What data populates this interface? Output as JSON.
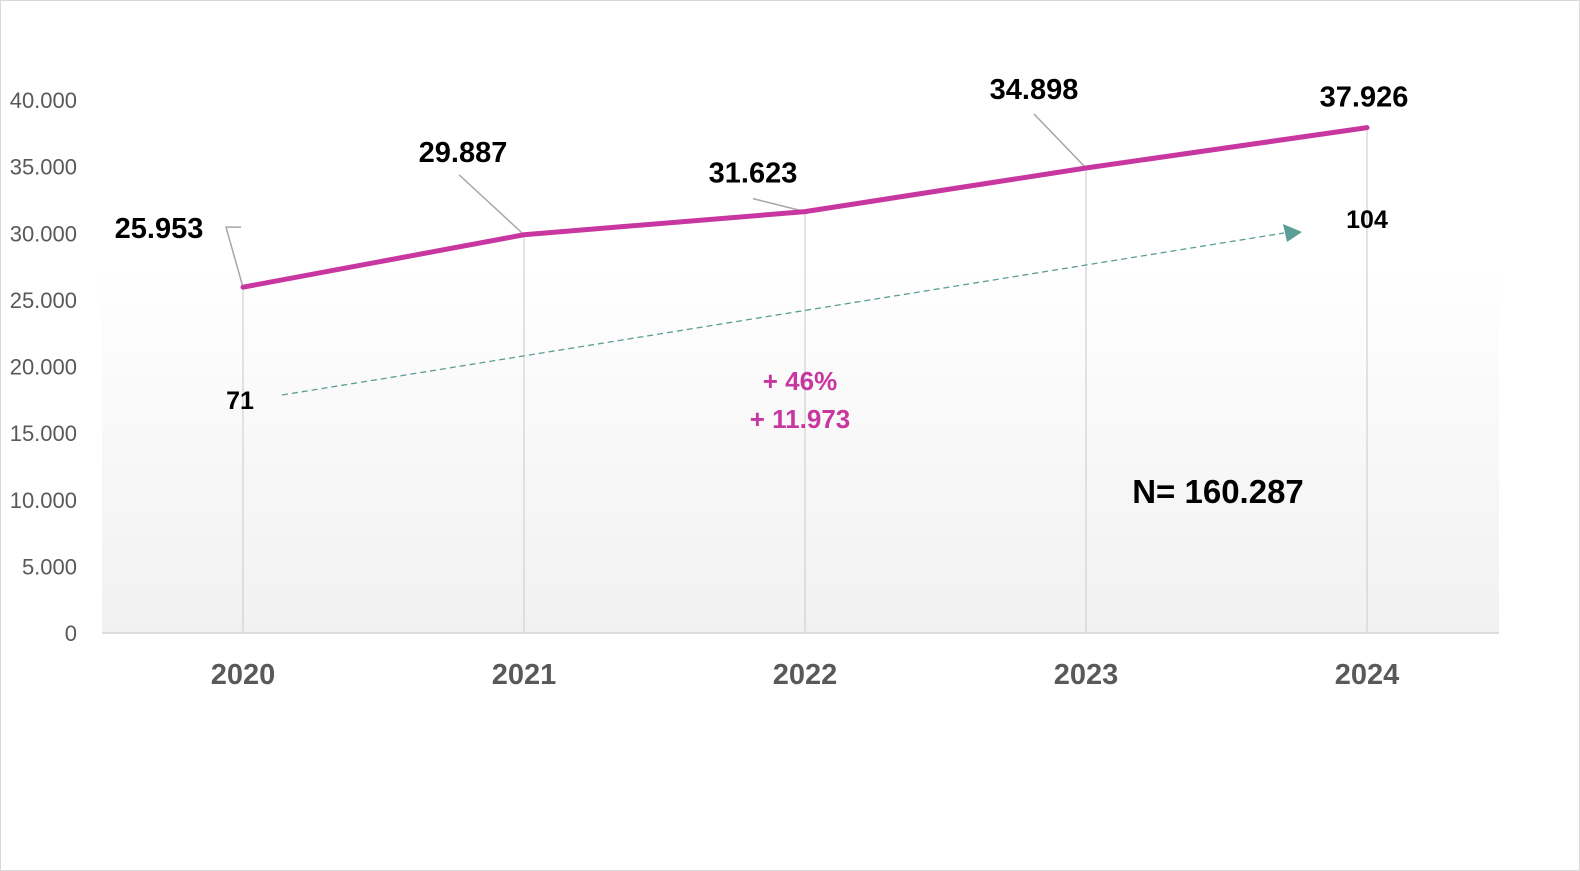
{
  "chart_data": {
    "type": "line",
    "categories": [
      "2020",
      "2021",
      "2022",
      "2023",
      "2024"
    ],
    "values": [
      25953,
      29887,
      31623,
      34898,
      37926
    ],
    "value_labels": [
      "25.953",
      "29.887",
      "31.623",
      "34.898",
      "37.926"
    ],
    "yticks": [
      0,
      5000,
      10000,
      15000,
      20000,
      25000,
      30000,
      35000,
      40000
    ],
    "ytick_labels": [
      "0",
      "5.000",
      "10.000",
      "15.000",
      "20.000",
      "25.000",
      "30.000",
      "35.000",
      "40.000"
    ],
    "ylim": [
      0,
      40000
    ],
    "grid": "vertical drop lines",
    "trend_arrow": {
      "start_label": "71",
      "end_label": "104"
    },
    "growth": {
      "percent": "+ 46%",
      "absolute": "+ 11.973"
    },
    "total": "N= 160.287"
  },
  "colors": {
    "line": "#c837a0",
    "growth_text": "#c837a0",
    "trend_arrow": "#5a9e96",
    "axis_text": "#595959",
    "gridline": "#d4d4d4"
  }
}
